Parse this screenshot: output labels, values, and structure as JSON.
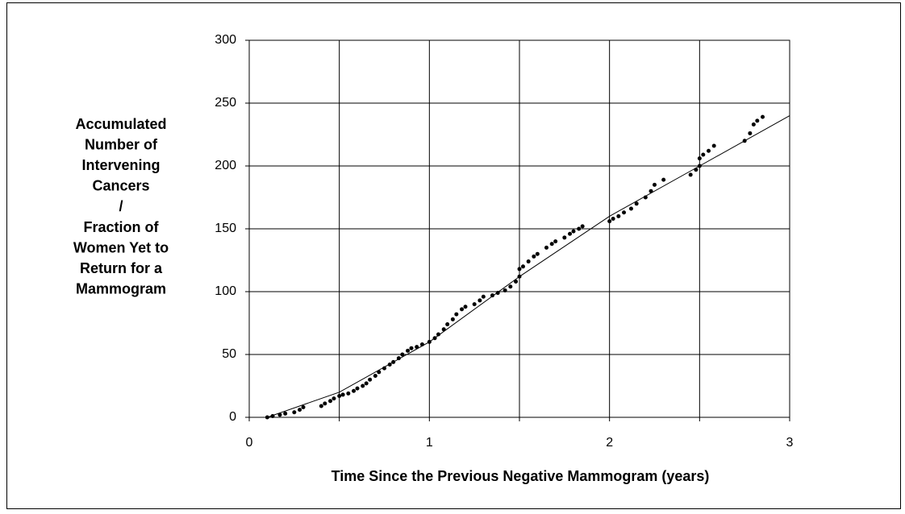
{
  "chart_data": {
    "type": "scatter",
    "ylabel": [
      "Accumulated",
      "Number of",
      "Intervening",
      "Cancers",
      "/",
      "Fraction of",
      "Women Yet to",
      "Return for a",
      "Mammogram"
    ],
    "xlabel": "Time Since the Previous Negative Mammogram (years)",
    "xlim": [
      0,
      3
    ],
    "xticks": [
      0,
      1,
      2,
      3
    ],
    "xminor": [
      0.5,
      1.5,
      2.5
    ],
    "ylim": [
      0,
      300
    ],
    "yticks": [
      0,
      50,
      100,
      150,
      200,
      250,
      300
    ],
    "grid": true,
    "color": "#000000",
    "points": {
      "x": [
        0.1,
        0.13,
        0.17,
        0.2,
        0.25,
        0.28,
        0.3,
        0.4,
        0.42,
        0.45,
        0.47,
        0.5,
        0.52,
        0.55,
        0.58,
        0.6,
        0.63,
        0.65,
        0.67,
        0.7,
        0.72,
        0.75,
        0.78,
        0.8,
        0.83,
        0.85,
        0.88,
        0.9,
        0.93,
        0.96,
        1.0,
        1.03,
        1.05,
        1.08,
        1.1,
        1.13,
        1.15,
        1.18,
        1.2,
        1.25,
        1.28,
        1.3,
        1.35,
        1.38,
        1.42,
        1.45,
        1.48,
        1.5,
        1.5,
        1.52,
        1.55,
        1.58,
        1.6,
        1.65,
        1.68,
        1.7,
        1.75,
        1.78,
        1.8,
        1.83,
        1.85,
        2.0,
        2.02,
        2.05,
        2.08,
        2.12,
        2.15,
        2.2,
        2.23,
        2.25,
        2.3,
        2.45,
        2.48,
        2.5,
        2.5,
        2.52,
        2.55,
        2.58,
        2.75,
        2.78,
        2.8,
        2.82,
        2.85
      ],
      "values": [
        0,
        1,
        2,
        3,
        4,
        6,
        8,
        9,
        11,
        13,
        15,
        17,
        18,
        19,
        21,
        23,
        25,
        27,
        30,
        33,
        36,
        39,
        42,
        44,
        47,
        50,
        53,
        55,
        56,
        58,
        60,
        63,
        66,
        70,
        74,
        78,
        82,
        86,
        88,
        90,
        93,
        96,
        97,
        99,
        101,
        104,
        108,
        112,
        118,
        120,
        124,
        128,
        130,
        135,
        138,
        140,
        143,
        146,
        148,
        150,
        152,
        156,
        158,
        160,
        163,
        166,
        170,
        175,
        180,
        185,
        189,
        193,
        197,
        200,
        206,
        209,
        212,
        216,
        220,
        226,
        233,
        236,
        239
      ]
    },
    "fit": {
      "x": [
        0.1,
        0.5,
        1,
        1.5,
        2,
        2.5,
        3
      ],
      "values": [
        0,
        20,
        60,
        112,
        160,
        200,
        240
      ]
    }
  }
}
